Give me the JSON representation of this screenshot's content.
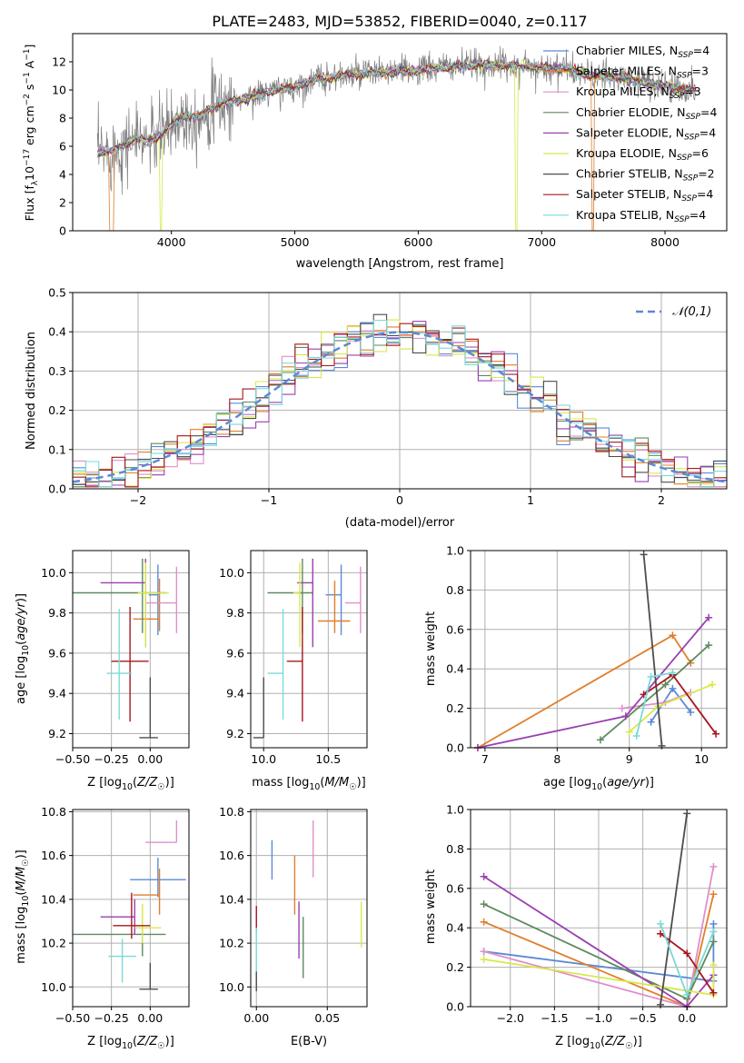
{
  "figure_title": "PLATE=2483, MJD=53852, FIBERID=0040, z=0.117",
  "colors": {
    "Chabrier MILES": "#5b8ad6",
    "Salpeter MILES": "#e07f2c",
    "Kroupa MILES": "#e08fcb",
    "Chabrier ELODIE": "#5e8a5e",
    "Salpeter ELODIE": "#9a3fb0",
    "Kroupa ELODIE": "#d8e84a",
    "Chabrier STELIB": "#4d4d4d",
    "Salpeter STELIB": "#a8161f",
    "Kroupa STELIB": "#7ad9d9",
    "spectrum": "#7f7f7f",
    "normal": "#5b8ad6",
    "grid": "#b0b0b0"
  },
  "chart_data": [
    {
      "id": "spectrum",
      "type": "line",
      "title": "PLATE=2483, MJD=53852, FIBERID=0040, z=0.117",
      "xlabel": "wavelength [Angstrom, rest frame]",
      "ylabel": "Flux [f_λ 10^-17 erg cm^-2 s^-1 A^-1]",
      "xlim": [
        3200,
        8500
      ],
      "ylim": [
        0,
        14
      ],
      "xticks": [
        4000,
        5000,
        6000,
        7000,
        8000
      ],
      "yticks": [
        0,
        2,
        4,
        6,
        8,
        10,
        12
      ],
      "grid": false,
      "legend_position": "right",
      "legend": [
        {
          "name": "Chabrier MILES",
          "nssp": "4"
        },
        {
          "name": "Salpeter MILES",
          "nssp": "3"
        },
        {
          "name": "Kroupa MILES",
          "nssp": "3"
        },
        {
          "name": "Chabrier ELODIE",
          "nssp": "4"
        },
        {
          "name": "Salpeter ELODIE",
          "nssp": "4"
        },
        {
          "name": "Kroupa ELODIE",
          "nssp": "6"
        },
        {
          "name": "Chabrier STELIB",
          "nssp": "2"
        },
        {
          "name": "Salpeter STELIB",
          "nssp": "4"
        },
        {
          "name": "Kroupa STELIB",
          "nssp": "4"
        }
      ],
      "continuum": {
        "x": [
          3400,
          3500,
          3600,
          3700,
          3800,
          3900,
          4000,
          4100,
          4200,
          4300,
          4400,
          4600,
          4800,
          5000,
          5200,
          5400,
          5600,
          5800,
          6000,
          6200,
          6400,
          6600,
          6800,
          7000,
          7200,
          7400,
          7600,
          7800,
          8000,
          8200
        ],
        "y": [
          5.5,
          5.6,
          6.0,
          6.5,
          6.4,
          6.7,
          7.5,
          8.2,
          8.0,
          8.6,
          9.0,
          9.4,
          9.9,
          10.2,
          10.8,
          11.0,
          11.2,
          11.3,
          11.4,
          11.6,
          11.7,
          11.8,
          11.7,
          11.6,
          11.5,
          11.0,
          10.9,
          10.6,
          10.3,
          10.0
        ]
      },
      "notes": "Dropouts to 0: Salpeter MILES near 3500-3530 and 7420 A; Kroupa ELODIE near 3920 and 6800 A."
    },
    {
      "id": "residuals",
      "type": "histogram",
      "xlabel": "(data-model)/error",
      "ylabel": "Normed distribution",
      "xlim": [
        -2.5,
        2.5
      ],
      "ylim": [
        0,
        0.5
      ],
      "xticks": [
        -2,
        -1,
        0,
        1,
        2
      ],
      "yticks": [
        0.0,
        0.1,
        0.2,
        0.3,
        0.4,
        0.5
      ],
      "grid": true,
      "legend_position": "top-right",
      "legend_label": "𝒩(0,1)",
      "bin_width": 0.1
    },
    {
      "id": "age_vs_Z",
      "type": "errorbar",
      "xlabel": "Z [log10(Z/Z☉)]",
      "ylabel": "age  [log10(age/yr)]",
      "xlim": [
        -0.5,
        0.25
      ],
      "ylim": [
        9.13,
        10.11
      ],
      "xticks": [
        -0.5,
        -0.25,
        0.0
      ],
      "yticks": [
        9.2,
        9.4,
        9.6,
        9.8,
        10.0
      ],
      "grid": true,
      "points": [
        {
          "model": "Chabrier MILES",
          "x": 0.05,
          "xerr": [
            0.06,
            0.0
          ],
          "y": 9.89,
          "yerr": [
            0.2,
            0.15
          ]
        },
        {
          "model": "Salpeter MILES",
          "x": 0.06,
          "xerr": [
            0.17,
            0.0
          ],
          "y": 9.77,
          "yerr": [
            0.06,
            0.2
          ]
        },
        {
          "model": "Kroupa MILES",
          "x": 0.17,
          "xerr": [
            0.2,
            0.0
          ],
          "y": 9.85,
          "yerr": [
            0.15,
            0.18
          ]
        },
        {
          "model": "Chabrier ELODIE",
          "x": -0.05,
          "xerr": [
            0.45,
            0.15
          ],
          "y": 9.9,
          "yerr": [
            0.2,
            0.17
          ]
        },
        {
          "model": "Salpeter ELODIE",
          "x": -0.03,
          "xerr": [
            0.29,
            0.0
          ],
          "y": 9.95,
          "yerr": [
            0.32,
            0.12
          ]
        },
        {
          "model": "Kroupa ELODIE",
          "x": -0.03,
          "xerr": [
            0.05,
            0.15
          ],
          "y": 9.9,
          "yerr": [
            0.27,
            0.15
          ]
        },
        {
          "model": "Chabrier STELIB",
          "x": -0.0,
          "xerr": [
            0.07,
            0.05
          ],
          "y": 9.18,
          "yerr": [
            0.0,
            0.3
          ]
        },
        {
          "model": "Salpeter STELIB",
          "x": -0.13,
          "xerr": [
            0.12,
            0.12
          ],
          "y": 9.56,
          "yerr": [
            0.3,
            0.27
          ]
        },
        {
          "model": "Kroupa STELIB",
          "x": -0.2,
          "xerr": [
            0.08,
            0.08
          ],
          "y": 9.5,
          "yerr": [
            0.23,
            0.32
          ]
        }
      ]
    },
    {
      "id": "age_vs_mass",
      "type": "errorbar",
      "xlabel": "mass [log10(M/M☉)]",
      "ylabel": "",
      "xlim": [
        9.9,
        10.8
      ],
      "ylim": [
        9.13,
        10.11
      ],
      "xticks": [
        10.0,
        10.5
      ],
      "yticks": [
        9.2,
        9.4,
        9.6,
        9.8,
        10.0
      ],
      "grid": true,
      "points": [
        {
          "model": "Chabrier MILES",
          "x": 10.6,
          "xerr": [
            0.12,
            0.0
          ],
          "y": 9.89,
          "yerr": [
            0.2,
            0.15
          ]
        },
        {
          "model": "Salpeter MILES",
          "x": 10.55,
          "xerr": [
            0.13,
            0.12
          ],
          "y": 9.76,
          "yerr": [
            0.06,
            0.2
          ]
        },
        {
          "model": "Kroupa MILES",
          "x": 10.75,
          "xerr": [
            0.12,
            0.0
          ],
          "y": 9.85,
          "yerr": [
            0.15,
            0.18
          ]
        },
        {
          "model": "Chabrier ELODIE",
          "x": 10.3,
          "xerr": [
            0.27,
            0.08
          ],
          "y": 9.9,
          "yerr": [
            0.2,
            0.17
          ]
        },
        {
          "model": "Salpeter ELODIE",
          "x": 10.38,
          "xerr": [
            0.12,
            0.0
          ],
          "y": 9.95,
          "yerr": [
            0.32,
            0.12
          ]
        },
        {
          "model": "Kroupa ELODIE",
          "x": 10.28,
          "xerr": [
            0.05,
            0.0
          ],
          "y": 9.9,
          "yerr": [
            0.27,
            0.15
          ]
        },
        {
          "model": "Chabrier STELIB",
          "x": 10.0,
          "xerr": [
            0.08,
            0.0
          ],
          "y": 9.18,
          "yerr": [
            0.0,
            0.3
          ]
        },
        {
          "model": "Salpeter STELIB",
          "x": 10.3,
          "xerr": [
            0.12,
            0.0
          ],
          "y": 9.56,
          "yerr": [
            0.3,
            0.27
          ]
        },
        {
          "model": "Kroupa STELIB",
          "x": 10.15,
          "xerr": [
            0.12,
            0.0
          ],
          "y": 9.5,
          "yerr": [
            0.23,
            0.32
          ]
        }
      ]
    },
    {
      "id": "weights_vs_age",
      "type": "line",
      "xlabel": "age  [log10(age/yr)]",
      "ylabel": "mass weight",
      "xlim": [
        6.8,
        10.35
      ],
      "ylim": [
        0,
        1
      ],
      "xticks": [
        7,
        8,
        9,
        10
      ],
      "yticks": [
        0.0,
        0.2,
        0.4,
        0.6,
        0.8,
        1.0
      ],
      "grid": true,
      "series": [
        {
          "model": "Chabrier MILES",
          "x": [
            9.3,
            9.6,
            9.85
          ],
          "y": [
            0.13,
            0.3,
            0.18
          ]
        },
        {
          "model": "Salpeter MILES",
          "x": [
            6.9,
            9.6,
            9.85
          ],
          "y": [
            0.0,
            0.57,
            0.43
          ]
        },
        {
          "model": "Kroupa MILES",
          "x": [
            8.9,
            9.5,
            9.85
          ],
          "y": [
            0.2,
            0.23,
            0.28
          ]
        },
        {
          "model": "Chabrier ELODIE",
          "x": [
            8.6,
            9.5,
            10.1
          ],
          "y": [
            0.04,
            0.32,
            0.52
          ]
        },
        {
          "model": "Salpeter ELODIE",
          "x": [
            6.9,
            8.95,
            10.1
          ],
          "y": [
            0.0,
            0.16,
            0.66
          ]
        },
        {
          "model": "Kroupa ELODIE",
          "x": [
            9.0,
            9.4,
            10.15
          ],
          "y": [
            0.08,
            0.21,
            0.32
          ]
        },
        {
          "model": "Chabrier STELIB",
          "x": [
            9.2,
            9.45
          ],
          "y": [
            0.98,
            0.01
          ]
        },
        {
          "model": "Salpeter STELIB",
          "x": [
            9.2,
            9.6,
            10.2
          ],
          "y": [
            0.27,
            0.37,
            0.07
          ]
        },
        {
          "model": "Kroupa STELIB",
          "x": [
            9.1,
            9.3,
            9.6
          ],
          "y": [
            0.06,
            0.36,
            0.38
          ]
        }
      ]
    },
    {
      "id": "mass_vs_Z",
      "type": "errorbar",
      "xlabel": "Z [log10(Z/Z☉)]",
      "ylabel": "mass [log10(M/M☉)]",
      "xlim": [
        -0.5,
        0.25
      ],
      "ylim": [
        9.91,
        10.81
      ],
      "xticks": [
        -0.5,
        -0.25,
        0.0
      ],
      "yticks": [
        10.0,
        10.2,
        10.4,
        10.6,
        10.8
      ],
      "grid": true,
      "points": [
        {
          "model": "Chabrier MILES",
          "x": 0.05,
          "xerr": [
            0.18,
            0.18
          ],
          "y": 10.49,
          "yerr": [
            0.08,
            0.1
          ]
        },
        {
          "model": "Salpeter MILES",
          "x": 0.06,
          "xerr": [
            0.17,
            0.0
          ],
          "y": 10.42,
          "yerr": [
            0.09,
            0.12
          ]
        },
        {
          "model": "Kroupa MILES",
          "x": 0.17,
          "xerr": [
            0.2,
            0.0
          ],
          "y": 10.66,
          "yerr": [
            0.0,
            0.1
          ]
        },
        {
          "model": "Chabrier ELODIE",
          "x": -0.05,
          "xerr": [
            0.45,
            0.15
          ],
          "y": 10.24,
          "yerr": [
            0.1,
            0.06
          ]
        },
        {
          "model": "Salpeter ELODIE",
          "x": -0.1,
          "xerr": [
            0.22,
            0.0
          ],
          "y": 10.32,
          "yerr": [
            0.08,
            0.08
          ]
        },
        {
          "model": "Kroupa ELODIE",
          "x": -0.05,
          "xerr": [
            0.05,
            0.12
          ],
          "y": 10.27,
          "yerr": [
            0.07,
            0.11
          ]
        },
        {
          "model": "Chabrier STELIB",
          "x": 0.0,
          "xerr": [
            0.07,
            0.05
          ],
          "y": 9.99,
          "yerr": [
            0.0,
            0.12
          ]
        },
        {
          "model": "Salpeter STELIB",
          "x": -0.12,
          "xerr": [
            0.12,
            0.12
          ],
          "y": 10.28,
          "yerr": [
            0.06,
            0.15
          ]
        },
        {
          "model": "Kroupa STELIB",
          "x": -0.18,
          "xerr": [
            0.09,
            0.09
          ],
          "y": 10.14,
          "yerr": [
            0.12,
            0.08
          ]
        }
      ]
    },
    {
      "id": "mass_vs_EBV",
      "type": "errorbar",
      "xlabel": "E(B-V)",
      "ylabel": "",
      "xlim": [
        -0.004,
        0.078
      ],
      "ylim": [
        9.91,
        10.81
      ],
      "xticks": [
        0.0,
        0.05
      ],
      "yticks": [
        10.0,
        10.2,
        10.4,
        10.6,
        10.8
      ],
      "grid": true,
      "points": [
        {
          "model": "Chabrier MILES",
          "x": 0.011,
          "y": 10.58,
          "yerr": [
            0.09,
            0.09
          ]
        },
        {
          "model": "Salpeter MILES",
          "x": 0.027,
          "y": 10.48,
          "yerr": [
            0.15,
            0.12
          ]
        },
        {
          "model": "Kroupa MILES",
          "x": 0.04,
          "y": 10.66,
          "yerr": [
            0.16,
            0.1
          ]
        },
        {
          "model": "Chabrier ELODIE",
          "x": 0.033,
          "y": 10.18,
          "yerr": [
            0.14,
            0.14
          ]
        },
        {
          "model": "Salpeter ELODIE",
          "x": 0.03,
          "y": 10.26,
          "yerr": [
            0.13,
            0.13
          ]
        },
        {
          "model": "Kroupa ELODIE",
          "x": 0.074,
          "y": 10.27,
          "yerr": [
            0.09,
            0.12
          ]
        },
        {
          "model": "Chabrier STELIB",
          "x": 0.0,
          "y": 10.03,
          "yerr": [
            0.05,
            0.05
          ]
        },
        {
          "model": "Salpeter STELIB",
          "x": 0.0,
          "y": 10.31,
          "yerr": [
            0.06,
            0.06
          ]
        },
        {
          "model": "Kroupa STELIB",
          "x": 0.0,
          "y": 10.13,
          "yerr": [
            0.06,
            0.14
          ]
        }
      ]
    },
    {
      "id": "weights_vs_Z",
      "type": "line",
      "xlabel": "Z [log10(Z/Z☉)]",
      "ylabel": "mass weight",
      "xlim": [
        -2.45,
        0.45
      ],
      "ylim": [
        0,
        1
      ],
      "xticks": [
        -2.0,
        -1.5,
        -1.0,
        -0.5,
        0.0
      ],
      "yticks": [
        0.0,
        0.2,
        0.4,
        0.6,
        0.8,
        1.0
      ],
      "grid": true,
      "series": [
        {
          "model": "Chabrier MILES",
          "x": [
            -2.3,
            0.3,
            0.3
          ],
          "y": [
            0.28,
            0.13,
            0.42
          ]
        },
        {
          "model": "Salpeter MILES",
          "x": [
            -2.3,
            0.0,
            0.3
          ],
          "y": [
            0.43,
            0.0,
            0.57
          ]
        },
        {
          "model": "Kroupa MILES",
          "x": [
            -2.3,
            0.0,
            0.3
          ],
          "y": [
            0.28,
            0.0,
            0.71
          ]
        },
        {
          "model": "Chabrier ELODIE",
          "x": [
            -2.3,
            0.0,
            0.3
          ],
          "y": [
            0.52,
            0.04,
            0.33
          ]
        },
        {
          "model": "Salpeter ELODIE",
          "x": [
            -2.3,
            0.0,
            0.3
          ],
          "y": [
            0.66,
            0.0,
            0.16
          ]
        },
        {
          "model": "Kroupa ELODIE",
          "x": [
            -2.3,
            0.3,
            0.3
          ],
          "y": [
            0.24,
            0.06,
            0.21
          ]
        },
        {
          "model": "Chabrier STELIB",
          "x": [
            -0.3,
            0.0
          ],
          "y": [
            0.01,
            0.98
          ]
        },
        {
          "model": "Salpeter STELIB",
          "x": [
            -0.3,
            0.0,
            0.3
          ],
          "y": [
            0.37,
            0.27,
            0.07
          ]
        },
        {
          "model": "Kroupa STELIB",
          "x": [
            -0.3,
            0.0,
            0.3
          ],
          "y": [
            0.42,
            0.06,
            0.38
          ]
        }
      ]
    }
  ]
}
